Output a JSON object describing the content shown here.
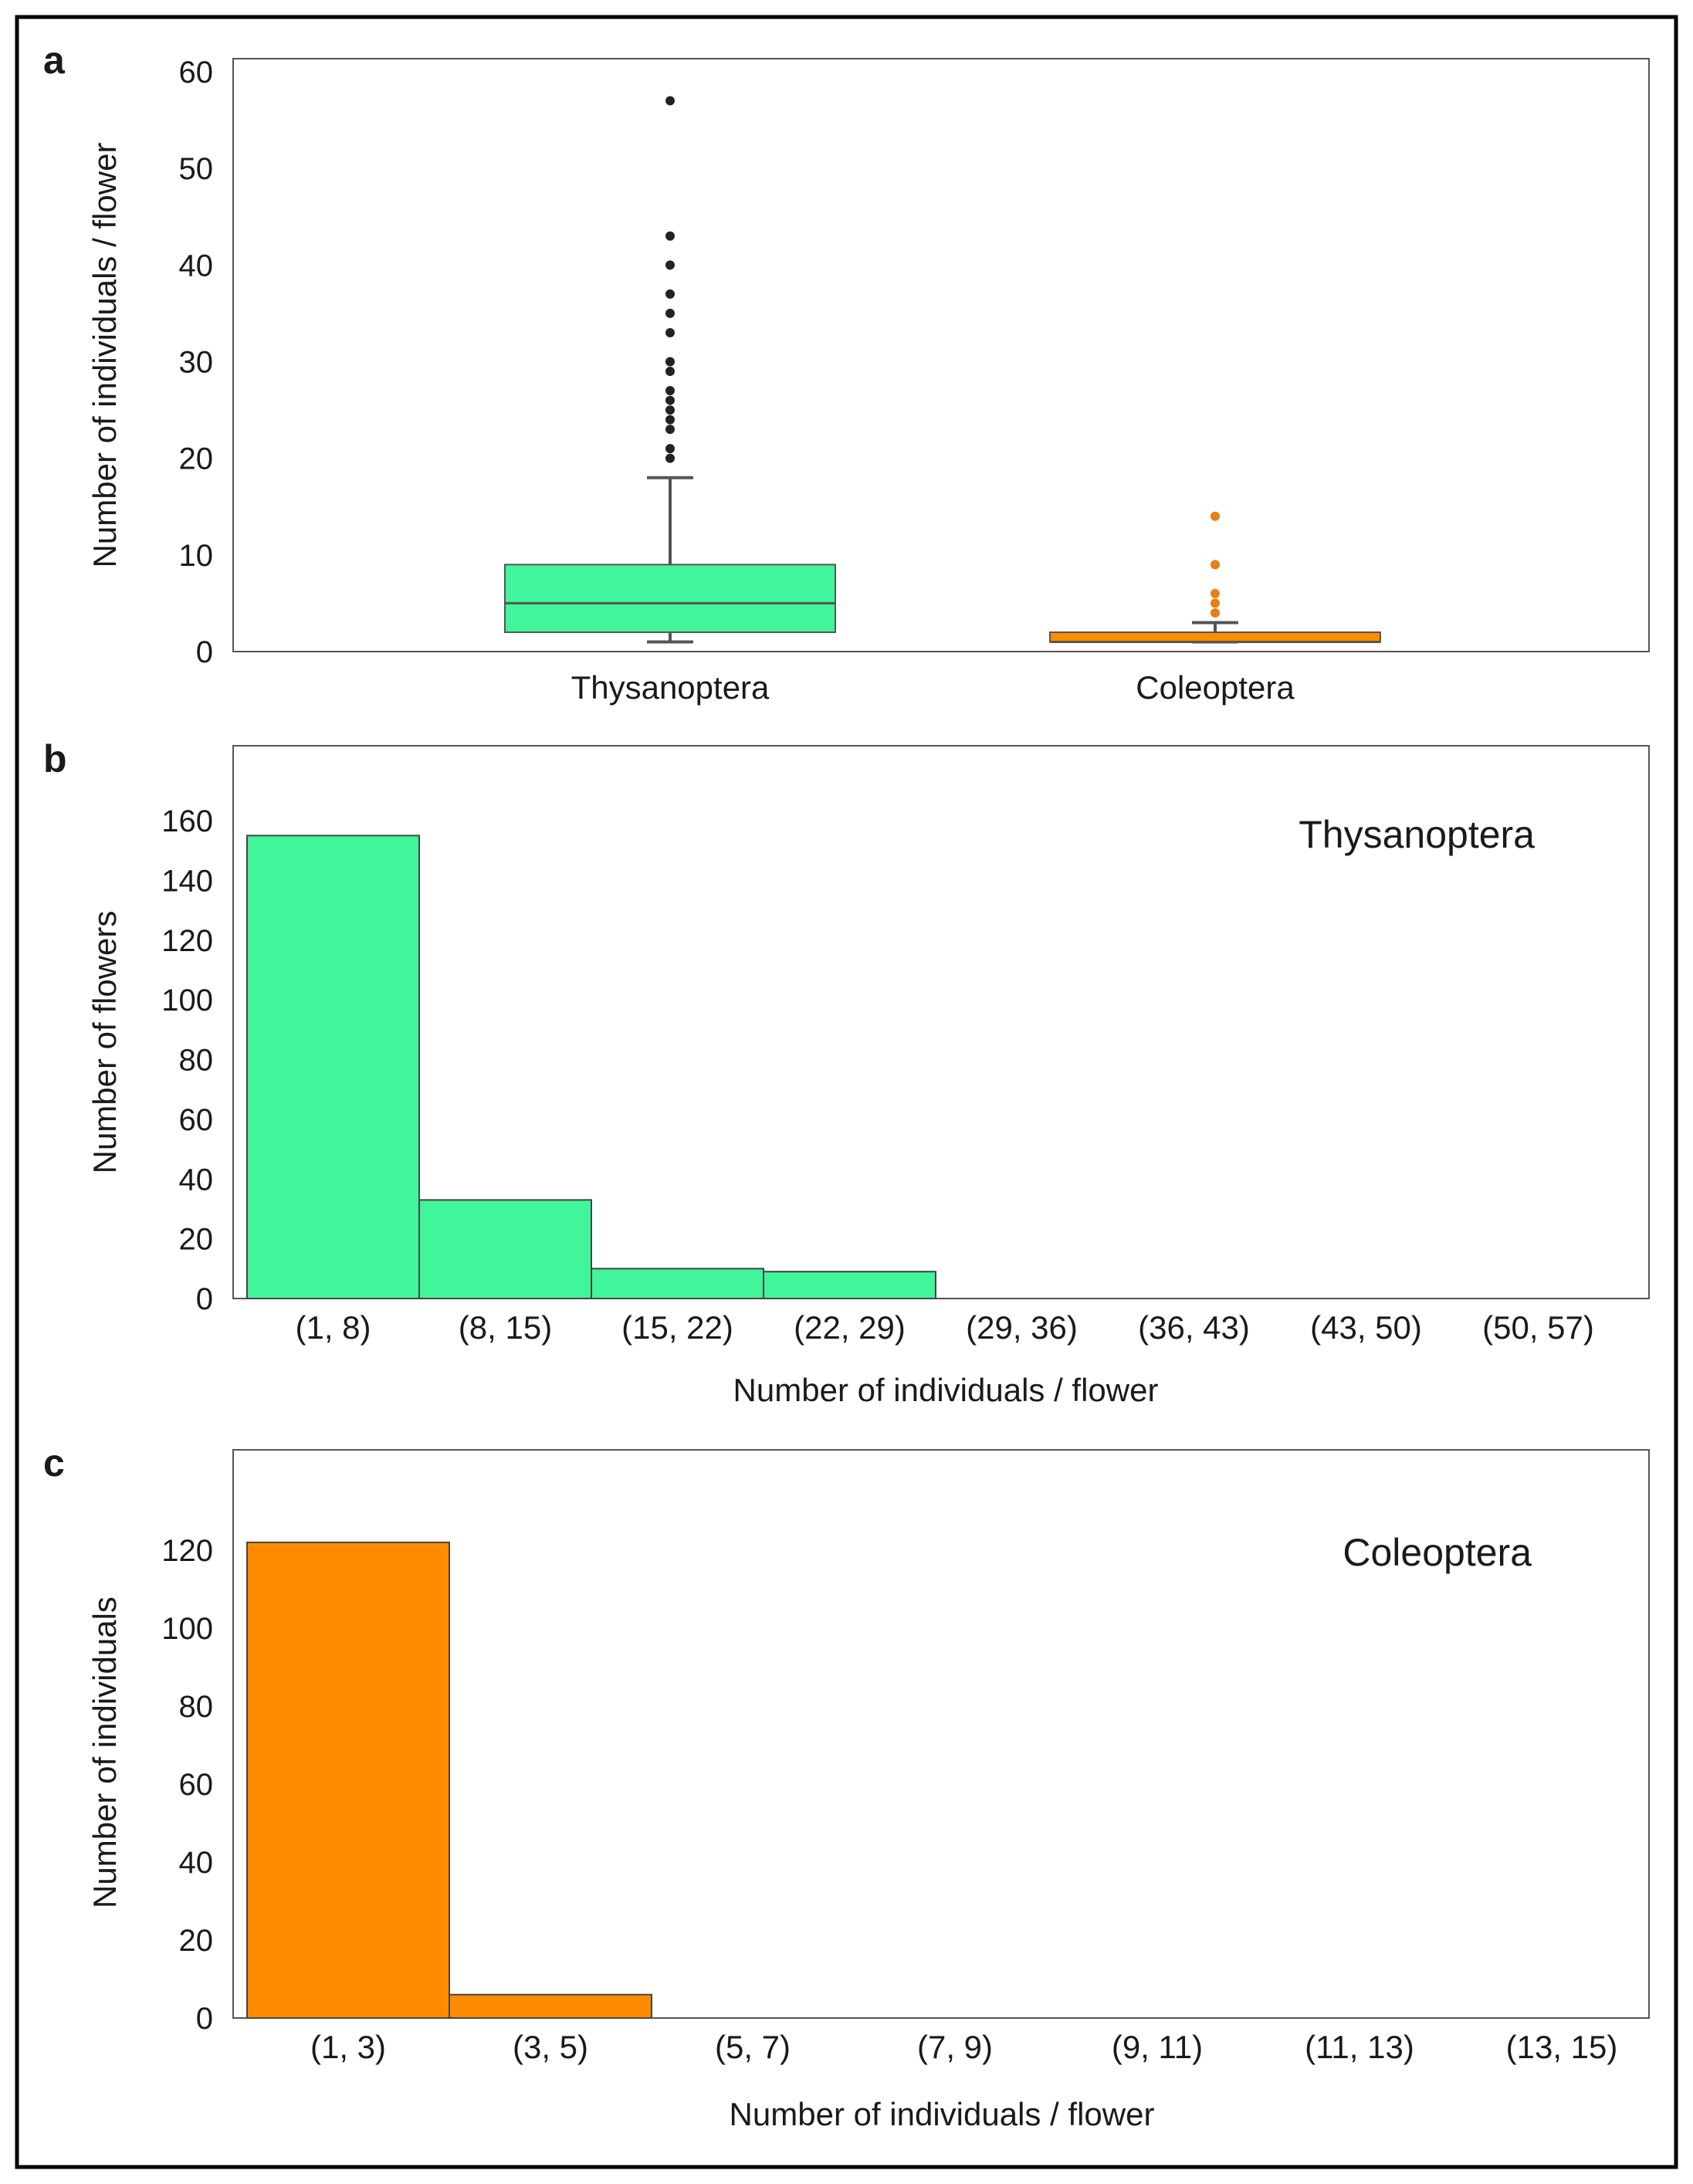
{
  "chart_data": [
    {
      "panel": "a",
      "type": "box",
      "title": "",
      "xlabel": "",
      "ylabel": "Number of individuals / flower",
      "ylim": [
        0,
        60
      ],
      "yticks": [
        0,
        10,
        20,
        30,
        40,
        50,
        60
      ],
      "grid": false,
      "categories": [
        "Thysanoptera",
        "Coleoptera"
      ],
      "series": [
        {
          "name": "Thysanoptera",
          "color": "#40f59a",
          "whisker_low": 1,
          "q1": 2,
          "median": 5,
          "q3": 9,
          "whisker_high": 18,
          "outliers": [
            20,
            21,
            23,
            24,
            25,
            26,
            27,
            29,
            30,
            33,
            35,
            37,
            40,
            43,
            57
          ]
        },
        {
          "name": "Coleoptera",
          "color": "#ff8c00",
          "whisker_low": 1,
          "q1": 1,
          "median": 1,
          "q3": 2,
          "whisker_high": 3,
          "outliers": [
            4,
            5,
            6,
            9,
            14
          ]
        }
      ]
    },
    {
      "panel": "b",
      "type": "bar",
      "title": "Thysanoptera",
      "xlabel": "Number of individuals / flower",
      "ylabel": "Number of flowers",
      "ylim": [
        0,
        180
      ],
      "yticks": [
        0,
        20,
        40,
        60,
        80,
        100,
        120,
        140,
        160
      ],
      "grid": false,
      "color": "#40f59a",
      "categories": [
        "(1, 8)",
        "(8, 15)",
        "(15, 22)",
        "(22, 29)",
        "(29, 36)",
        "(36, 43)",
        "(43, 50)",
        "(50, 57)"
      ],
      "values": [
        155,
        33,
        10,
        9,
        0,
        0,
        0,
        0
      ]
    },
    {
      "panel": "c",
      "type": "bar",
      "title": "Coleoptera",
      "xlabel": "Number of individuals / flower",
      "ylabel": "Number of individuals",
      "ylim": [
        0,
        145
      ],
      "yticks": [
        0,
        20,
        40,
        60,
        80,
        100,
        120
      ],
      "grid": false,
      "color": "#ff8c00",
      "categories": [
        "(1, 3)",
        "(3, 5)",
        "(5, 7)",
        "(7, 9)",
        "(9, 11)",
        "(11, 13)",
        "(13, 15)"
      ],
      "values": [
        122,
        6,
        0,
        0,
        0,
        0,
        0
      ]
    }
  ]
}
